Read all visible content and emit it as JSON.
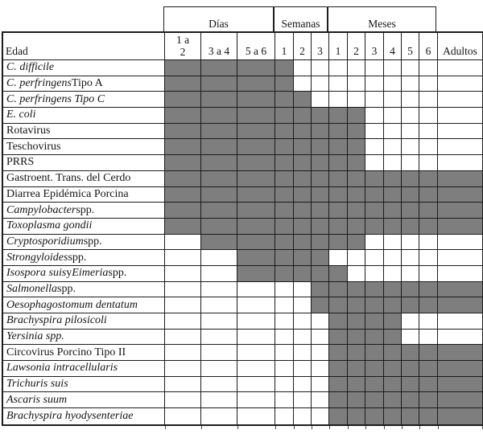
{
  "colors": {
    "shaded": "#7e7e7e",
    "grid_line": "#1c1c1c",
    "background": "#ffffff",
    "text": "#141414"
  },
  "chart_data": {
    "type": "table",
    "corner_header": "Edad",
    "column_groups": [
      {
        "label": "Días",
        "columns": [
          "1 a 2",
          "3 a 4",
          "5 a 6"
        ]
      },
      {
        "label": "Semanas",
        "columns": [
          "1",
          "2",
          "3"
        ]
      },
      {
        "label": "Meses",
        "columns": [
          "1",
          "2",
          "3",
          "4",
          "5",
          "6"
        ]
      }
    ],
    "last_column": "Adultos",
    "columns": [
      "1 a 2",
      "3 a 4",
      "5 a 6",
      "1",
      "2",
      "3",
      "1",
      "2",
      "3",
      "4",
      "5",
      "6",
      "Adultos"
    ],
    "rows": [
      {
        "label": "C. difficile",
        "segments": [
          {
            "t": "C. difficile",
            "i": true
          }
        ],
        "span": [
          0,
          3
        ]
      },
      {
        "label": "C. perfringens Tipo A",
        "segments": [
          {
            "t": "C. perfringens",
            "i": true
          },
          {
            "t": " Tipo A",
            "i": false
          }
        ],
        "span": [
          0,
          3
        ]
      },
      {
        "label": "C. perfringens Tipo C",
        "segments": [
          {
            "t": "C. perfringens Tipo C",
            "i": true
          }
        ],
        "span": [
          0,
          4
        ]
      },
      {
        "label": "E. coli",
        "segments": [
          {
            "t": "E. coli",
            "i": true
          }
        ],
        "span": [
          0,
          7
        ]
      },
      {
        "label": "Rotavirus",
        "segments": [
          {
            "t": "Rotavirus",
            "i": false
          }
        ],
        "span": [
          0,
          7
        ]
      },
      {
        "label": "Teschovirus",
        "segments": [
          {
            "t": "Teschovirus",
            "i": false
          }
        ],
        "span": [
          0,
          7
        ]
      },
      {
        "label": "PRRS",
        "segments": [
          {
            "t": "PRRS",
            "i": false
          }
        ],
        "span": [
          0,
          7
        ]
      },
      {
        "label": "Gastroent. Trans. del Cerdo",
        "segments": [
          {
            "t": "Gastroent. Trans. del Cerdo",
            "i": false
          }
        ],
        "span": [
          0,
          12
        ]
      },
      {
        "label": "Diarrea Epidémica Porcina",
        "segments": [
          {
            "t": "Diarrea Epidémica Porcina",
            "i": false
          }
        ],
        "span": [
          0,
          12
        ]
      },
      {
        "label": "Campylobacter spp.",
        "segments": [
          {
            "t": "Campylobacter",
            "i": true
          },
          {
            "t": " spp.",
            "i": false
          }
        ],
        "span": [
          0,
          12
        ]
      },
      {
        "label": "Toxoplasma gondii",
        "segments": [
          {
            "t": "Toxoplasma gondii",
            "i": true
          }
        ],
        "span": [
          0,
          12
        ]
      },
      {
        "label": "Cryptosporidium spp.",
        "segments": [
          {
            "t": "Cryptosporidium",
            "i": true
          },
          {
            "t": " spp.",
            "i": false
          }
        ],
        "span": [
          1,
          7
        ]
      },
      {
        "label": "Strongyloides spp.",
        "segments": [
          {
            "t": "Strongyloides",
            "i": true
          },
          {
            "t": " spp.",
            "i": false
          }
        ],
        "span": [
          2,
          5
        ]
      },
      {
        "label": "Isospora suis y Eimeria spp.",
        "segments": [
          {
            "t": "Isospora suis",
            "i": true
          },
          {
            "t": " y ",
            "i": false
          },
          {
            "t": "Eimeria",
            "i": true
          },
          {
            "t": " spp.",
            "i": false
          }
        ],
        "span": [
          2,
          6
        ]
      },
      {
        "label": "Salmonella spp.",
        "segments": [
          {
            "t": "Salmonella",
            "i": true
          },
          {
            "t": " spp.",
            "i": false
          }
        ],
        "span": [
          5,
          12
        ]
      },
      {
        "label": "Oesophagostomum dentatum",
        "segments": [
          {
            "t": "Oesophagostomum dentatum",
            "i": true
          }
        ],
        "span": [
          5,
          12
        ]
      },
      {
        "label": "Brachyspira pilosicoli",
        "segments": [
          {
            "t": "Brachyspira pilosicoli",
            "i": true
          }
        ],
        "span": [
          6,
          9
        ]
      },
      {
        "label": "Yersinia spp.",
        "segments": [
          {
            "t": "Yersinia spp.",
            "i": true
          }
        ],
        "span": [
          6,
          9
        ]
      },
      {
        "label": "Circovirus Porcino Tipo II",
        "segments": [
          {
            "t": "Circovirus Porcino Tipo II",
            "i": false
          }
        ],
        "span": [
          6,
          12
        ]
      },
      {
        "label": "Lawsonia intracellularis",
        "segments": [
          {
            "t": "Lawsonia intracellularis",
            "i": true
          }
        ],
        "span": [
          6,
          12
        ]
      },
      {
        "label": "Trichuris suis",
        "segments": [
          {
            "t": "Trichuris suis",
            "i": true
          }
        ],
        "span": [
          6,
          12
        ]
      },
      {
        "label": "Ascaris suum",
        "segments": [
          {
            "t": "Ascaris suum",
            "i": true
          }
        ],
        "span": [
          6,
          12
        ]
      },
      {
        "label": "Brachyspira hyodysenteriae",
        "segments": [
          {
            "t": "Brachyspira hyodysenteriae",
            "i": true
          }
        ],
        "span": [
          6,
          12
        ]
      }
    ]
  }
}
